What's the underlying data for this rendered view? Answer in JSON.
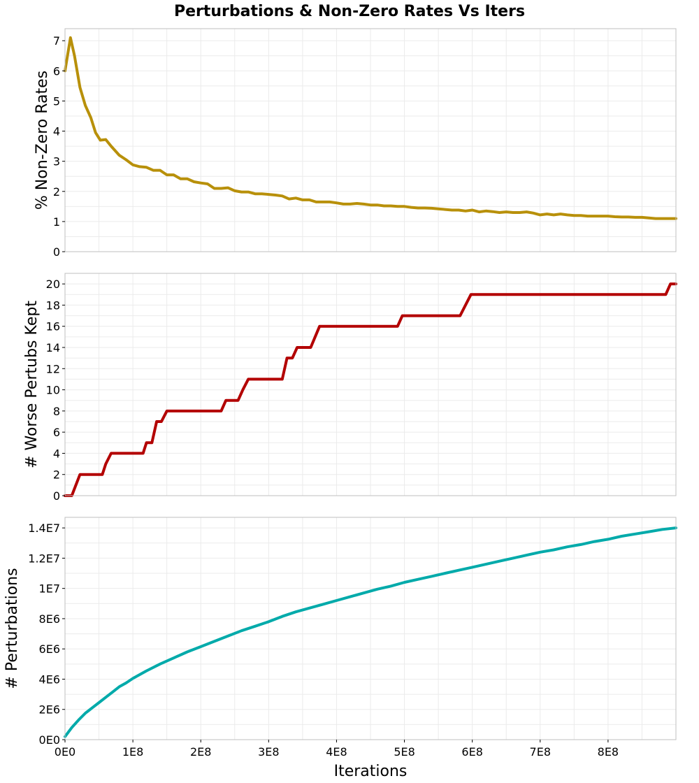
{
  "title": "Perturbations & Non-Zero Rates Vs Iters",
  "xlabel": "Iterations",
  "x_ticks": [
    {
      "v": 0,
      "label": "0E0"
    },
    {
      "v": 100000000,
      "label": "1E8"
    },
    {
      "v": 200000000,
      "label": "2E8"
    },
    {
      "v": 300000000,
      "label": "3E8"
    },
    {
      "v": 400000000,
      "label": "4E8"
    },
    {
      "v": 500000000,
      "label": "5E8"
    },
    {
      "v": 600000000,
      "label": "6E8"
    },
    {
      "v": 700000000,
      "label": "7E8"
    },
    {
      "v": 800000000,
      "label": "8E8"
    }
  ],
  "xlim": [
    0,
    900000000
  ],
  "chart_data": [
    {
      "type": "line",
      "ylabel": "% Non-Zero Rates",
      "ylim": [
        0,
        7.4
      ],
      "y_ticks": [
        {
          "v": 0,
          "label": "0"
        },
        {
          "v": 1,
          "label": "1"
        },
        {
          "v": 2,
          "label": "2"
        },
        {
          "v": 3,
          "label": "3"
        },
        {
          "v": 4,
          "label": "4"
        },
        {
          "v": 5,
          "label": "5"
        },
        {
          "v": 6,
          "label": "6"
        },
        {
          "v": 7,
          "label": "7"
        }
      ],
      "grid": true,
      "color": "#b8900a",
      "points": [
        [
          0,
          6.0
        ],
        [
          8000000,
          7.1
        ],
        [
          14000000,
          6.5
        ],
        [
          22000000,
          5.45
        ],
        [
          30000000,
          4.85
        ],
        [
          38000000,
          4.45
        ],
        [
          45000000,
          3.95
        ],
        [
          52000000,
          3.7
        ],
        [
          60000000,
          3.72
        ],
        [
          68000000,
          3.5
        ],
        [
          80000000,
          3.2
        ],
        [
          90000000,
          3.05
        ],
        [
          100000000,
          2.88
        ],
        [
          110000000,
          2.82
        ],
        [
          120000000,
          2.8
        ],
        [
          130000000,
          2.7
        ],
        [
          140000000,
          2.7
        ],
        [
          150000000,
          2.55
        ],
        [
          160000000,
          2.55
        ],
        [
          170000000,
          2.42
        ],
        [
          180000000,
          2.42
        ],
        [
          190000000,
          2.32
        ],
        [
          200000000,
          2.28
        ],
        [
          210000000,
          2.25
        ],
        [
          220000000,
          2.1
        ],
        [
          230000000,
          2.1
        ],
        [
          240000000,
          2.12
        ],
        [
          250000000,
          2.02
        ],
        [
          260000000,
          1.98
        ],
        [
          270000000,
          1.98
        ],
        [
          280000000,
          1.92
        ],
        [
          290000000,
          1.92
        ],
        [
          300000000,
          1.9
        ],
        [
          310000000,
          1.88
        ],
        [
          320000000,
          1.85
        ],
        [
          330000000,
          1.75
        ],
        [
          340000000,
          1.78
        ],
        [
          350000000,
          1.72
        ],
        [
          360000000,
          1.72
        ],
        [
          370000000,
          1.65
        ],
        [
          380000000,
          1.65
        ],
        [
          390000000,
          1.65
        ],
        [
          400000000,
          1.62
        ],
        [
          410000000,
          1.58
        ],
        [
          420000000,
          1.58
        ],
        [
          430000000,
          1.6
        ],
        [
          440000000,
          1.58
        ],
        [
          450000000,
          1.55
        ],
        [
          460000000,
          1.55
        ],
        [
          470000000,
          1.52
        ],
        [
          480000000,
          1.52
        ],
        [
          490000000,
          1.5
        ],
        [
          500000000,
          1.5
        ],
        [
          510000000,
          1.47
        ],
        [
          520000000,
          1.45
        ],
        [
          530000000,
          1.45
        ],
        [
          540000000,
          1.44
        ],
        [
          550000000,
          1.42
        ],
        [
          560000000,
          1.4
        ],
        [
          570000000,
          1.38
        ],
        [
          580000000,
          1.38
        ],
        [
          590000000,
          1.35
        ],
        [
          600000000,
          1.38
        ],
        [
          610000000,
          1.32
        ],
        [
          620000000,
          1.35
        ],
        [
          630000000,
          1.33
        ],
        [
          640000000,
          1.3
        ],
        [
          650000000,
          1.32
        ],
        [
          660000000,
          1.3
        ],
        [
          670000000,
          1.3
        ],
        [
          680000000,
          1.32
        ],
        [
          690000000,
          1.28
        ],
        [
          700000000,
          1.22
        ],
        [
          710000000,
          1.25
        ],
        [
          720000000,
          1.22
        ],
        [
          730000000,
          1.25
        ],
        [
          740000000,
          1.22
        ],
        [
          750000000,
          1.2
        ],
        [
          760000000,
          1.2
        ],
        [
          770000000,
          1.18
        ],
        [
          780000000,
          1.18
        ],
        [
          790000000,
          1.18
        ],
        [
          800000000,
          1.18
        ],
        [
          810000000,
          1.16
        ],
        [
          820000000,
          1.15
        ],
        [
          830000000,
          1.15
        ],
        [
          840000000,
          1.14
        ],
        [
          850000000,
          1.14
        ],
        [
          860000000,
          1.12
        ],
        [
          870000000,
          1.1
        ],
        [
          880000000,
          1.1
        ],
        [
          890000000,
          1.1
        ],
        [
          900000000,
          1.1
        ]
      ]
    },
    {
      "type": "line",
      "ylabel": "# Worse Pertubs Kept",
      "ylim": [
        0,
        21
      ],
      "y_ticks": [
        {
          "v": 0,
          "label": "0"
        },
        {
          "v": 2,
          "label": "2"
        },
        {
          "v": 4,
          "label": "4"
        },
        {
          "v": 6,
          "label": "6"
        },
        {
          "v": 8,
          "label": "8"
        },
        {
          "v": 10,
          "label": "10"
        },
        {
          "v": 12,
          "label": "12"
        },
        {
          "v": 14,
          "label": "14"
        },
        {
          "v": 16,
          "label": "16"
        },
        {
          "v": 18,
          "label": "18"
        },
        {
          "v": 20,
          "label": "20"
        }
      ],
      "grid": true,
      "color": "#b30000",
      "points": [
        [
          0,
          0
        ],
        [
          10000000,
          0
        ],
        [
          22000000,
          2
        ],
        [
          55000000,
          2
        ],
        [
          60000000,
          3
        ],
        [
          68000000,
          4
        ],
        [
          115000000,
          4
        ],
        [
          120000000,
          5
        ],
        [
          128000000,
          5
        ],
        [
          135000000,
          7
        ],
        [
          142000000,
          7
        ],
        [
          150000000,
          8
        ],
        [
          230000000,
          8
        ],
        [
          237000000,
          9
        ],
        [
          255000000,
          9
        ],
        [
          262000000,
          10
        ],
        [
          270000000,
          11
        ],
        [
          320000000,
          11
        ],
        [
          327000000,
          13
        ],
        [
          335000000,
          13
        ],
        [
          342000000,
          14
        ],
        [
          362000000,
          14
        ],
        [
          375000000,
          16
        ],
        [
          490000000,
          16
        ],
        [
          497000000,
          17
        ],
        [
          582000000,
          17
        ],
        [
          598000000,
          19
        ],
        [
          885000000,
          19
        ],
        [
          892000000,
          20
        ],
        [
          900000000,
          20
        ]
      ]
    },
    {
      "type": "line",
      "ylabel": "# Perturbations",
      "ylim": [
        0,
        14700000
      ],
      "y_ticks": [
        {
          "v": 0,
          "label": "0E0"
        },
        {
          "v": 2000000,
          "label": "2E6"
        },
        {
          "v": 4000000,
          "label": "4E6"
        },
        {
          "v": 6000000,
          "label": "6E6"
        },
        {
          "v": 8000000,
          "label": "8E6"
        },
        {
          "v": 10000000,
          "label": "1E7"
        },
        {
          "v": 12000000,
          "label": "1.2E7"
        },
        {
          "v": 14000000,
          "label": "1.4E7"
        }
      ],
      "grid": true,
      "color": "#00aaaa",
      "points": [
        [
          0,
          200000
        ],
        [
          10000000,
          800000
        ],
        [
          20000000,
          1300000
        ],
        [
          30000000,
          1750000
        ],
        [
          40000000,
          2100000
        ],
        [
          50000000,
          2450000
        ],
        [
          60000000,
          2800000
        ],
        [
          70000000,
          3150000
        ],
        [
          80000000,
          3500000
        ],
        [
          90000000,
          3750000
        ],
        [
          100000000,
          4050000
        ],
        [
          120000000,
          4550000
        ],
        [
          140000000,
          5000000
        ],
        [
          160000000,
          5400000
        ],
        [
          180000000,
          5800000
        ],
        [
          200000000,
          6150000
        ],
        [
          220000000,
          6500000
        ],
        [
          240000000,
          6850000
        ],
        [
          260000000,
          7200000
        ],
        [
          280000000,
          7500000
        ],
        [
          300000000,
          7800000
        ],
        [
          320000000,
          8150000
        ],
        [
          340000000,
          8450000
        ],
        [
          360000000,
          8700000
        ],
        [
          380000000,
          8950000
        ],
        [
          400000000,
          9200000
        ],
        [
          420000000,
          9450000
        ],
        [
          440000000,
          9700000
        ],
        [
          460000000,
          9950000
        ],
        [
          480000000,
          10150000
        ],
        [
          500000000,
          10400000
        ],
        [
          520000000,
          10600000
        ],
        [
          540000000,
          10800000
        ],
        [
          560000000,
          11000000
        ],
        [
          580000000,
          11200000
        ],
        [
          600000000,
          11400000
        ],
        [
          620000000,
          11600000
        ],
        [
          640000000,
          11800000
        ],
        [
          660000000,
          12000000
        ],
        [
          680000000,
          12200000
        ],
        [
          700000000,
          12400000
        ],
        [
          720000000,
          12550000
        ],
        [
          740000000,
          12750000
        ],
        [
          760000000,
          12900000
        ],
        [
          780000000,
          13100000
        ],
        [
          800000000,
          13250000
        ],
        [
          820000000,
          13450000
        ],
        [
          840000000,
          13600000
        ],
        [
          860000000,
          13750000
        ],
        [
          880000000,
          13900000
        ],
        [
          900000000,
          14000000
        ]
      ]
    }
  ]
}
